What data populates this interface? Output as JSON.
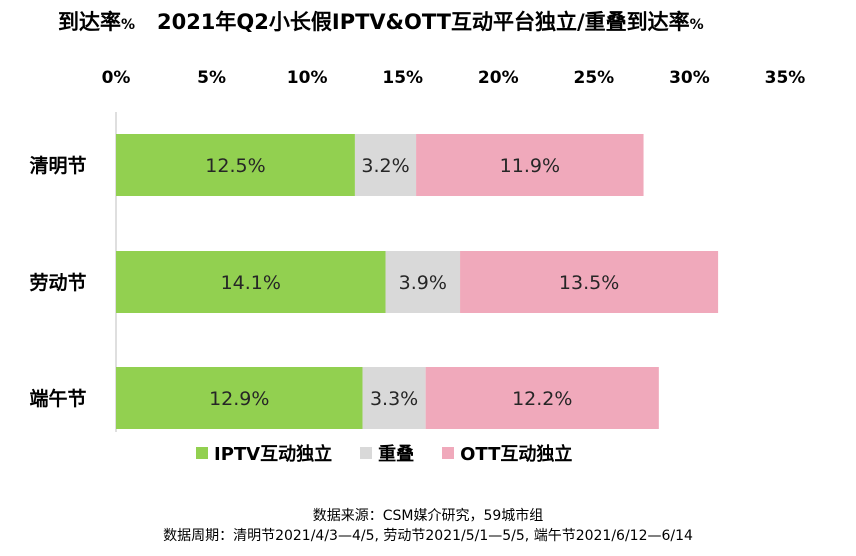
{
  "title": {
    "prefix": "到达率",
    "prefix_unit": "%",
    "main": "2021年Q2小长假IPTV&OTT互动平台独立/重叠到达率",
    "suffix_unit": "%"
  },
  "chart_data": {
    "type": "bar",
    "orientation": "horizontal",
    "stacked": true,
    "categories": [
      "清明节",
      "劳动节",
      "端午节"
    ],
    "series": [
      {
        "name": "IPTV互动独立",
        "values": [
          12.5,
          14.1,
          12.9
        ],
        "color": "#92d050"
      },
      {
        "name": "重叠",
        "values": [
          3.2,
          3.9,
          3.3
        ],
        "color": "#d9d9d9"
      },
      {
        "name": "OTT互动独立",
        "values": [
          11.9,
          13.5,
          12.2
        ],
        "color": "#f0a9bb"
      }
    ],
    "data_labels": [
      [
        "12.5%",
        "3.2%",
        "11.9%"
      ],
      [
        "14.1%",
        "3.9%",
        "13.5%"
      ],
      [
        "12.9%",
        "3.3%",
        "12.2%"
      ]
    ],
    "xlim": [
      0,
      35
    ],
    "x_ticks": [
      "0%",
      "5%",
      "10%",
      "15%",
      "20%",
      "25%",
      "30%",
      "35%"
    ],
    "axis_position": "top",
    "legend_position": "bottom",
    "grid": false
  },
  "source": {
    "line1": "数据来源：CSM媒介研究，59城市组",
    "line2": "数据周期：清明节2021/4/3—4/5, 劳动节2021/5/1—5/5, 端午节2021/6/12—6/14"
  }
}
